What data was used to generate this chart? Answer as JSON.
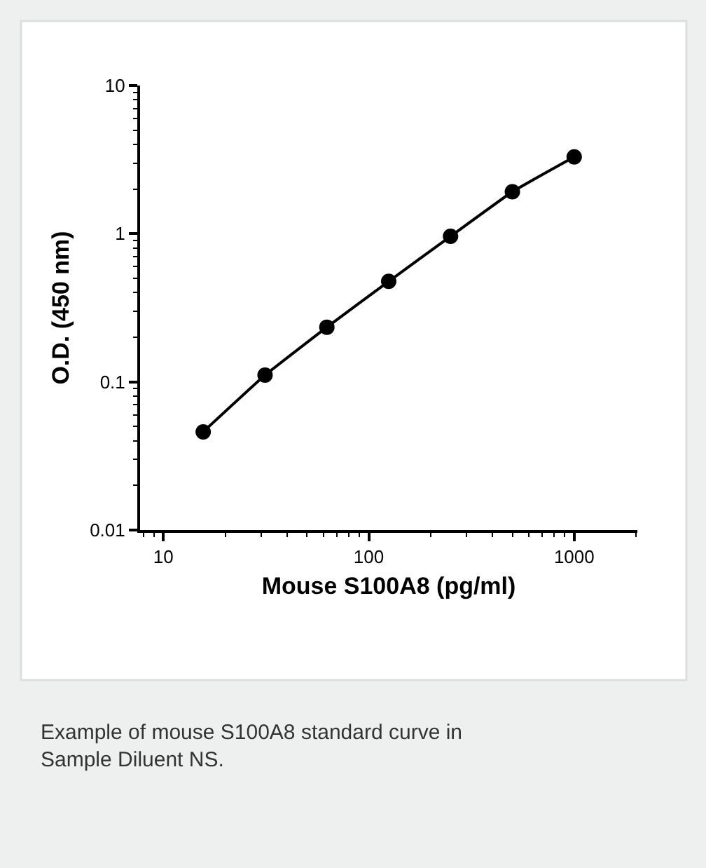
{
  "chart_data": {
    "type": "line",
    "xlabel": "Mouse S100A8 (pg/ml)",
    "ylabel": "O.D. (450 nm)",
    "log": "xy",
    "marker": "circle",
    "line_style": "solid",
    "legend": false,
    "x": [
      15.625,
      31.25,
      62.5,
      125,
      250,
      500,
      1000
    ],
    "series": [
      {
        "color": "#000000",
        "values": [
          0.046,
          0.111,
          0.234,
          0.477,
          0.96,
          1.92,
          3.3
        ]
      }
    ],
    "xlim": [
      7.7,
      2030
    ],
    "xticks": [
      10,
      100,
      1000
    ],
    "ylim": [
      0.01,
      10
    ],
    "yticks": [
      0.01,
      0.1,
      1,
      10
    ],
    "annotations": [
      "Example of mouse S100A8 standard curve in Sample Diluent NS."
    ]
  }
}
